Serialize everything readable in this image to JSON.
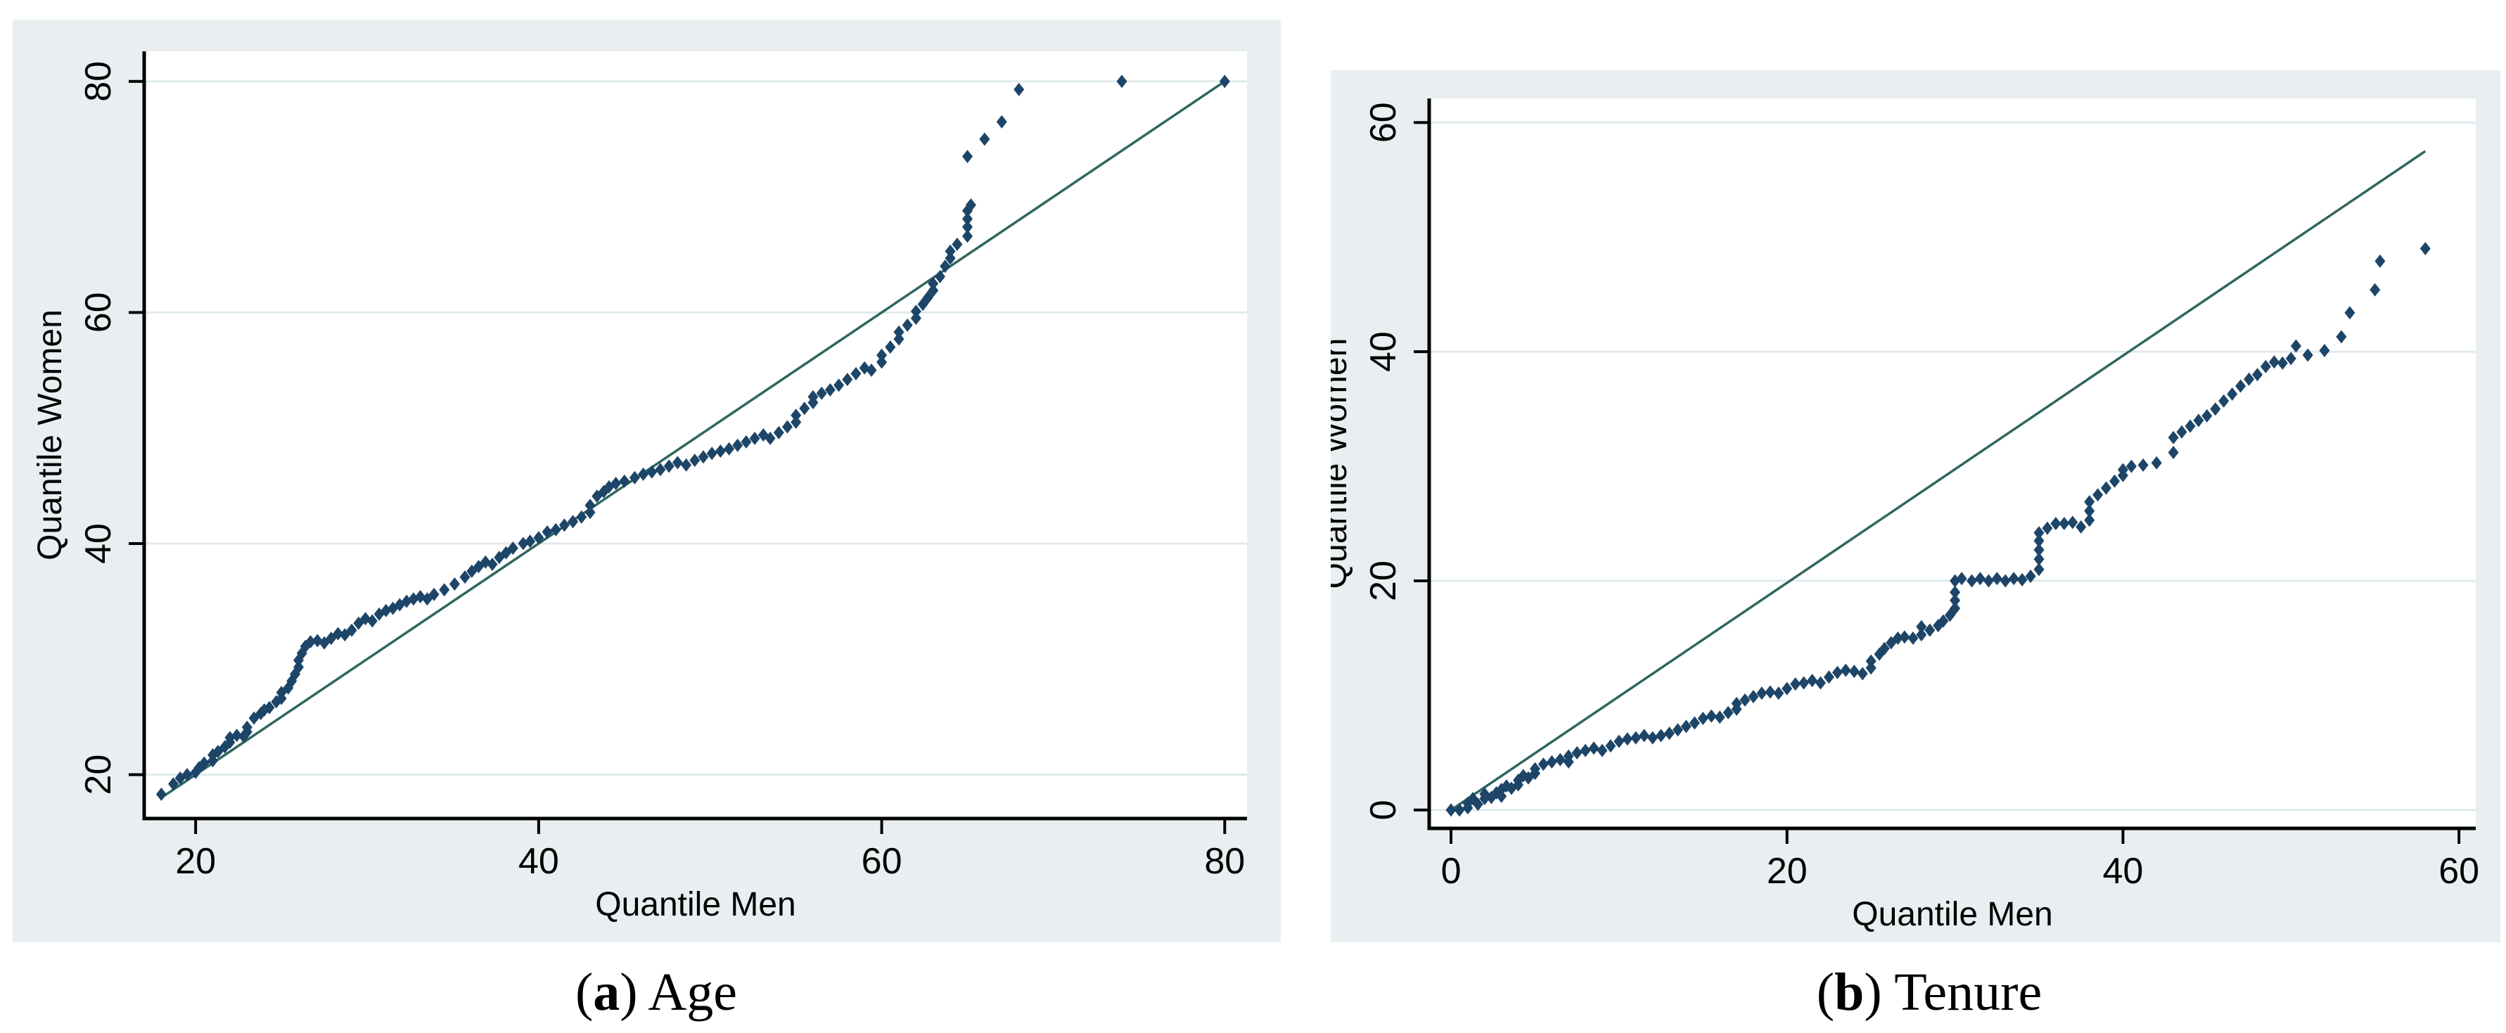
{
  "figure": {
    "description": "Two side-by-side quantile-quantile plots comparing men and women",
    "background": "#ffffff"
  },
  "style": {
    "panel_background": "#e9eff1",
    "plot_background": "#ffffff",
    "gridline_color": "#dfeaee",
    "axis_color": "#000000",
    "marker_color": "#1d4568",
    "reference_line_color": "#2f665e",
    "text_color": "#000000"
  },
  "captions": [
    {
      "pre": "(",
      "letter": "a",
      "post": ") Age"
    },
    {
      "pre": "(",
      "letter": "b",
      "post": ") Tenure"
    }
  ],
  "chart_data": [
    {
      "type": "scatter",
      "title": "(a) Age",
      "xlabel": "Quantile Men",
      "ylabel": "Quantile Women",
      "x_ticks": [
        20,
        40,
        60,
        80
      ],
      "y_ticks": [
        20,
        40,
        60,
        80
      ],
      "xlim": [
        17.0,
        81.3
      ],
      "ylim": [
        16.2,
        82.6
      ],
      "grid": "horizontal",
      "legend": "none",
      "reference_line": {
        "x1": 18,
        "y1": 18,
        "x2": 80,
        "y2": 80
      },
      "points": [
        [
          18,
          18.3
        ],
        [
          18.7,
          19.2
        ],
        [
          19.1,
          19.7
        ],
        [
          19.5,
          20
        ],
        [
          20,
          20.2
        ],
        [
          20.2,
          20.6
        ],
        [
          20.5,
          21
        ],
        [
          21,
          21.2
        ],
        [
          21,
          21.7
        ],
        [
          21.3,
          22
        ],
        [
          21.7,
          22.4
        ],
        [
          22,
          22.8
        ],
        [
          22,
          23.2
        ],
        [
          22.4,
          23.4
        ],
        [
          22.8,
          23.3
        ],
        [
          23,
          23.7
        ],
        [
          23,
          24.1
        ],
        [
          23.4,
          24.9
        ],
        [
          23.8,
          25.3
        ],
        [
          24,
          25.6
        ],
        [
          24.3,
          25.8
        ],
        [
          24.7,
          26.3
        ],
        [
          25,
          26.6
        ],
        [
          25,
          27.1
        ],
        [
          25.4,
          27.5
        ],
        [
          25.6,
          28.1
        ],
        [
          25.8,
          28.7
        ],
        [
          26,
          29.3
        ],
        [
          26,
          29.9
        ],
        [
          26.2,
          30.5
        ],
        [
          26.4,
          31.1
        ],
        [
          26.7,
          31.5
        ],
        [
          27.1,
          31.6
        ],
        [
          27.5,
          31.4
        ],
        [
          27.9,
          31.8
        ],
        [
          28.3,
          32.2
        ],
        [
          28.7,
          32.1
        ],
        [
          29.1,
          32.5
        ],
        [
          29.5,
          33.1
        ],
        [
          29.9,
          33.5
        ],
        [
          30.3,
          33.3
        ],
        [
          30.7,
          33.9
        ],
        [
          31.1,
          34.2
        ],
        [
          31.5,
          34.4
        ],
        [
          31.9,
          34.7
        ],
        [
          32.3,
          35
        ],
        [
          32.7,
          35.2
        ],
        [
          33.1,
          35.4
        ],
        [
          33.5,
          35.2
        ],
        [
          33.9,
          35.6
        ],
        [
          34.5,
          36
        ],
        [
          35.1,
          36.5
        ],
        [
          35.7,
          37.1
        ],
        [
          36.1,
          37.6
        ],
        [
          36.5,
          38
        ],
        [
          36.9,
          38.4
        ],
        [
          37.3,
          38.2
        ],
        [
          37.7,
          38.8
        ],
        [
          38.1,
          39.2
        ],
        [
          38.5,
          39.6
        ],
        [
          39.1,
          40
        ],
        [
          39.5,
          40.2
        ],
        [
          40,
          40.5
        ],
        [
          40.5,
          41
        ],
        [
          41,
          41.2
        ],
        [
          41.5,
          41.6
        ],
        [
          42,
          41.9
        ],
        [
          42.5,
          42.3
        ],
        [
          43,
          42.7
        ],
        [
          43,
          43.3
        ],
        [
          43.4,
          44.1
        ],
        [
          43.8,
          44.5
        ],
        [
          44.1,
          44.9
        ],
        [
          44.5,
          45.2
        ],
        [
          45,
          45.4
        ],
        [
          45.6,
          45.7
        ],
        [
          46.1,
          46
        ],
        [
          46.6,
          46.2
        ],
        [
          47.1,
          46.4
        ],
        [
          47.6,
          46.7
        ],
        [
          48.1,
          47
        ],
        [
          48.6,
          46.8
        ],
        [
          49.1,
          47.2
        ],
        [
          49.6,
          47.5
        ],
        [
          50.1,
          47.8
        ],
        [
          50.6,
          48
        ],
        [
          51.1,
          48.2
        ],
        [
          51.6,
          48.5
        ],
        [
          52.1,
          48.8
        ],
        [
          52.6,
          49.1
        ],
        [
          53.1,
          49.4
        ],
        [
          53.5,
          49.1
        ],
        [
          54,
          49.6
        ],
        [
          54.5,
          50.1
        ],
        [
          55,
          50.5
        ],
        [
          55,
          51.1
        ],
        [
          55.5,
          51.7
        ],
        [
          56,
          52.2
        ],
        [
          56,
          52.7
        ],
        [
          56.5,
          53
        ],
        [
          57,
          53.3
        ],
        [
          57.5,
          53.7
        ],
        [
          58,
          54.2
        ],
        [
          58.5,
          54.7
        ],
        [
          59,
          55.2
        ],
        [
          59.4,
          55
        ],
        [
          60,
          55.7
        ],
        [
          60,
          56.3
        ],
        [
          60.5,
          57
        ],
        [
          61,
          57.7
        ],
        [
          61,
          58.3
        ],
        [
          61.5,
          58.9
        ],
        [
          62,
          59.5
        ],
        [
          62,
          60.1
        ],
        [
          62.4,
          60.7
        ],
        [
          62.7,
          61.3
        ],
        [
          63,
          61.9
        ],
        [
          63,
          62.5
        ],
        [
          63.4,
          63.1
        ],
        [
          63.7,
          64
        ],
        [
          64,
          64.7
        ],
        [
          64,
          65.3
        ],
        [
          64.4,
          65.9
        ],
        [
          65,
          66.6
        ],
        [
          65,
          67.4
        ],
        [
          65,
          68.1
        ],
        [
          65,
          68.8
        ],
        [
          65.2,
          69.3
        ],
        [
          65,
          73.5
        ],
        [
          66,
          75
        ],
        [
          67,
          76.5
        ],
        [
          68,
          79.3
        ],
        [
          74,
          80
        ],
        [
          80,
          80
        ]
      ]
    },
    {
      "type": "scatter",
      "title": "(b) Tenure",
      "xlabel": "Quantile Men",
      "ylabel": "Quantile Women",
      "x_ticks": [
        0,
        20,
        40,
        60
      ],
      "y_ticks": [
        0,
        20,
        40,
        60
      ],
      "xlim": [
        -1.3,
        61.0
      ],
      "ylim": [
        -1.6,
        62.1
      ],
      "grid": "horizontal",
      "legend": "none",
      "reference_line": {
        "x1": 0,
        "y1": 0,
        "x2": 58,
        "y2": 57.5
      },
      "points": [
        [
          0,
          0
        ],
        [
          0.5,
          0
        ],
        [
          1,
          0.2
        ],
        [
          1,
          0.6
        ],
        [
          1.3,
          1
        ],
        [
          1.6,
          0.5
        ],
        [
          2,
          1
        ],
        [
          2,
          1.4
        ],
        [
          2.4,
          1.1
        ],
        [
          2.7,
          1.5
        ],
        [
          3,
          1.2
        ],
        [
          3,
          1.8
        ],
        [
          3.3,
          2.1
        ],
        [
          3.6,
          1.9
        ],
        [
          4,
          2.2
        ],
        [
          4,
          2.6
        ],
        [
          4.3,
          3
        ],
        [
          4.6,
          2.8
        ],
        [
          5,
          3.2
        ],
        [
          5,
          3.6
        ],
        [
          5.5,
          4
        ],
        [
          6,
          4.2
        ],
        [
          6.5,
          4.4
        ],
        [
          7,
          4.2
        ],
        [
          7,
          4.7
        ],
        [
          7.5,
          5
        ],
        [
          8,
          5.2
        ],
        [
          8.5,
          5.4
        ],
        [
          9,
          5.2
        ],
        [
          9.5,
          5.6
        ],
        [
          10,
          6
        ],
        [
          10.5,
          6.2
        ],
        [
          11,
          6.3
        ],
        [
          11.5,
          6.5
        ],
        [
          12,
          6.3
        ],
        [
          12.5,
          6.5
        ],
        [
          13,
          6.7
        ],
        [
          13.5,
          7
        ],
        [
          14,
          7.3
        ],
        [
          14.5,
          7.6
        ],
        [
          15,
          8
        ],
        [
          15.5,
          8.2
        ],
        [
          16,
          8.1
        ],
        [
          16.5,
          8.5
        ],
        [
          17,
          8.8
        ],
        [
          17,
          9.3
        ],
        [
          17.5,
          9.6
        ],
        [
          18,
          9.9
        ],
        [
          18.5,
          10.2
        ],
        [
          19,
          10.3
        ],
        [
          19.5,
          10.2
        ],
        [
          20,
          10.6
        ],
        [
          20.5,
          11
        ],
        [
          21,
          11.1
        ],
        [
          21.5,
          11.3
        ],
        [
          22,
          11.1
        ],
        [
          22.5,
          11.6
        ],
        [
          23,
          12
        ],
        [
          23.5,
          12.2
        ],
        [
          24,
          12.1
        ],
        [
          24.5,
          11.9
        ],
        [
          25,
          12.4
        ],
        [
          25,
          13
        ],
        [
          25.5,
          13.6
        ],
        [
          25.8,
          14.1
        ],
        [
          26.2,
          14.6
        ],
        [
          26.6,
          15
        ],
        [
          27,
          15.1
        ],
        [
          27.5,
          15
        ],
        [
          28,
          15.3
        ],
        [
          28,
          16
        ],
        [
          28.5,
          15.7
        ],
        [
          29,
          16.1
        ],
        [
          29.3,
          16.5
        ],
        [
          29.7,
          17
        ],
        [
          30,
          17.6
        ],
        [
          30,
          18.3
        ],
        [
          30,
          19
        ],
        [
          30,
          20
        ],
        [
          30.4,
          20.2
        ],
        [
          31,
          20
        ],
        [
          31.5,
          20.2
        ],
        [
          32,
          20
        ],
        [
          32.5,
          20.2
        ],
        [
          33,
          20
        ],
        [
          33.5,
          20.2
        ],
        [
          34,
          20.1
        ],
        [
          34.5,
          20.4
        ],
        [
          35,
          21
        ],
        [
          35,
          21.9
        ],
        [
          35,
          22.7
        ],
        [
          35,
          23.5
        ],
        [
          35,
          24.2
        ],
        [
          35.5,
          24.6
        ],
        [
          36,
          25
        ],
        [
          36.5,
          25
        ],
        [
          37,
          25.1
        ],
        [
          37.5,
          24.7
        ],
        [
          38,
          25.3
        ],
        [
          38,
          26.1
        ],
        [
          38,
          26.9
        ],
        [
          38.5,
          27.5
        ],
        [
          39,
          28.1
        ],
        [
          39.5,
          28.7
        ],
        [
          40,
          29.2
        ],
        [
          40,
          29.7
        ],
        [
          40.5,
          30
        ],
        [
          41.2,
          30.1
        ],
        [
          42,
          30.3
        ],
        [
          43,
          31.2
        ],
        [
          43,
          32.5
        ],
        [
          43.5,
          33
        ],
        [
          44,
          33.5
        ],
        [
          44.5,
          34
        ],
        [
          45,
          34.4
        ],
        [
          45.5,
          35
        ],
        [
          46,
          35.7
        ],
        [
          46.5,
          36.3
        ],
        [
          47,
          37
        ],
        [
          47.5,
          37.6
        ],
        [
          48,
          38
        ],
        [
          48.5,
          38.7
        ],
        [
          49,
          39.1
        ],
        [
          49.5,
          39
        ],
        [
          50,
          39.4
        ],
        [
          50.3,
          40.5
        ],
        [
          51,
          39.7
        ],
        [
          52,
          40.1
        ],
        [
          53,
          41.3
        ],
        [
          53.5,
          43.4
        ],
        [
          55,
          45.4
        ],
        [
          55.3,
          47.9
        ],
        [
          58,
          49
        ]
      ]
    }
  ]
}
